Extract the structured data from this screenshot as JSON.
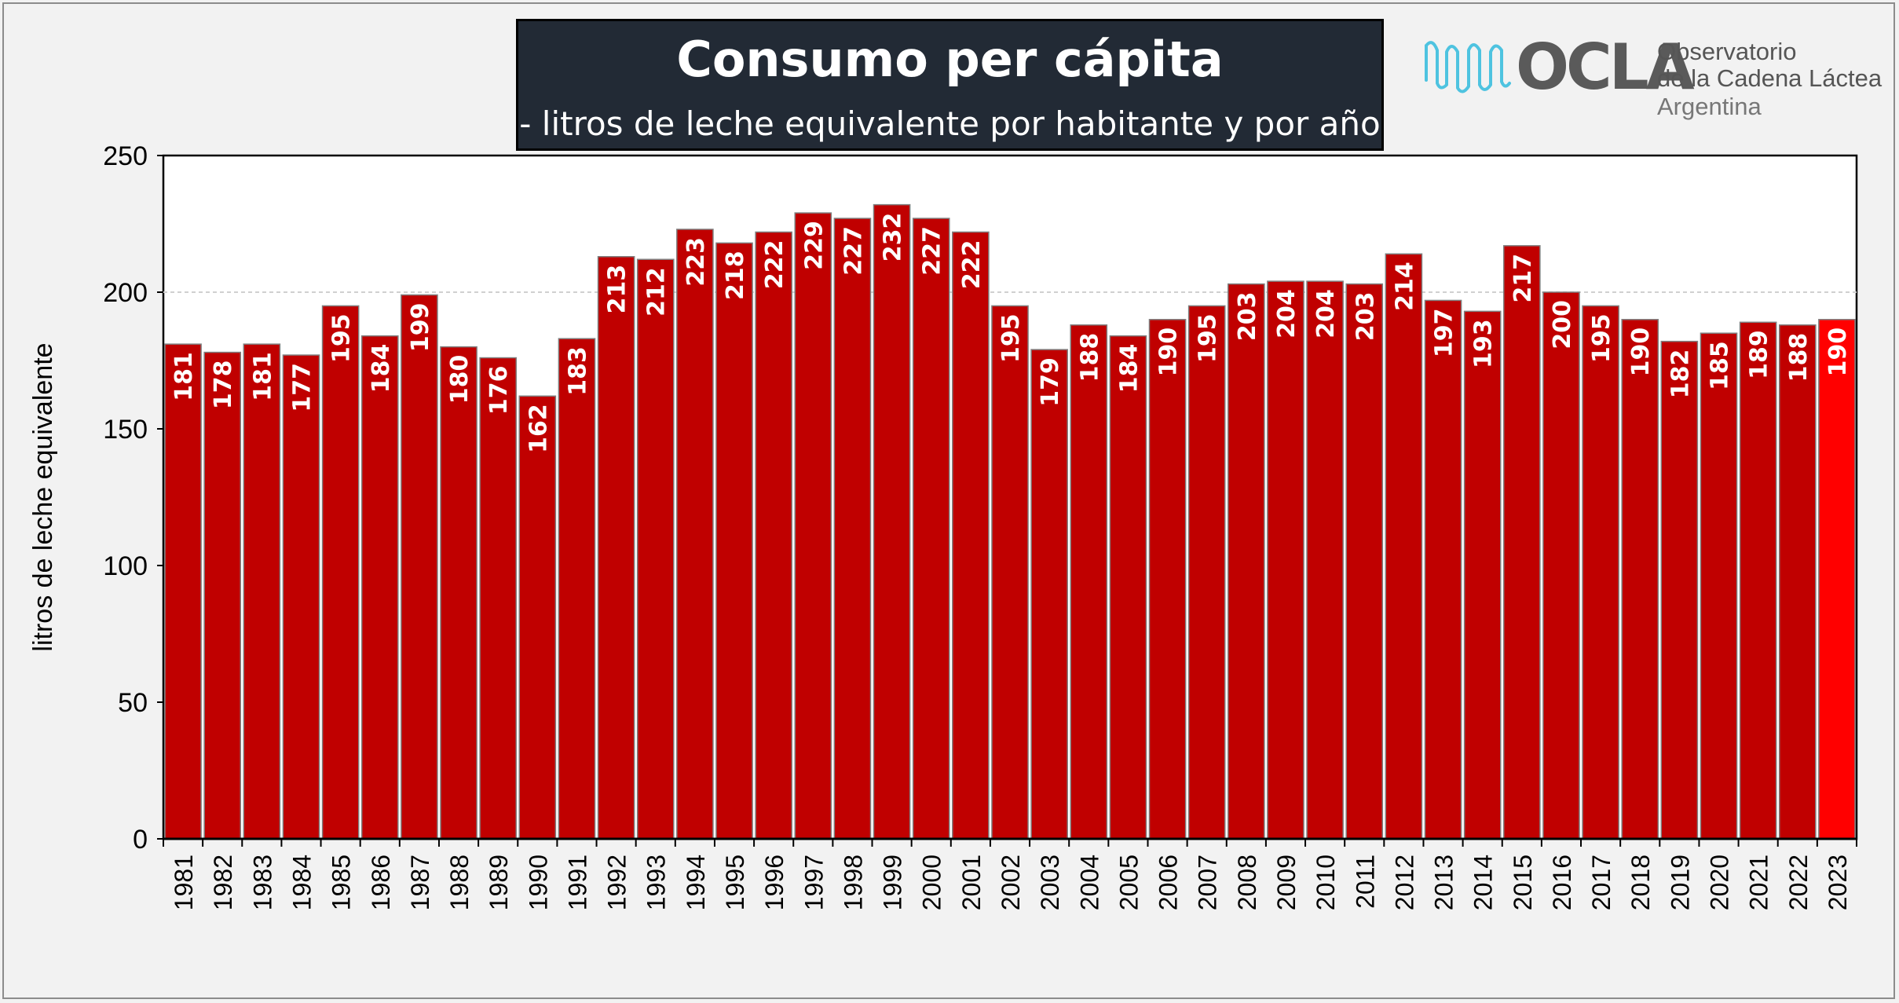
{
  "header": {
    "title": "Consumo per cápita",
    "subtitle": "- litros de leche equivalente por habitante y por año -"
  },
  "logo": {
    "name": "OCLA",
    "line1": "Observatorio",
    "line2": "de la Cadena Láctea",
    "line3": "Argentina",
    "wave_color": "#4ec3e0"
  },
  "chart_data": {
    "type": "bar",
    "title": "Consumo per cápita",
    "subtitle": "- litros de leche equivalente por habitante y por año -",
    "xlabel": "",
    "ylabel": "litros de leche equivalente",
    "ylim": [
      0,
      250
    ],
    "yticks": [
      0,
      50,
      100,
      150,
      200,
      250
    ],
    "grid": "horizontal dashed at 200",
    "legend": "none",
    "colors": {
      "bar": "#c00000",
      "highlight": "#ff0000",
      "label": "#ffffff"
    },
    "highlight_category": "2023",
    "categories": [
      "1981",
      "1982",
      "1983",
      "1984",
      "1985",
      "1986",
      "1987",
      "1988",
      "1989",
      "1990",
      "1991",
      "1992",
      "1993",
      "1994",
      "1995",
      "1996",
      "1997",
      "1998",
      "1999",
      "2000",
      "2001",
      "2002",
      "2003",
      "2004",
      "2005",
      "2006",
      "2007",
      "2008",
      "2009",
      "2010",
      "2011",
      "2012",
      "2013",
      "2014",
      "2015",
      "2016",
      "2017",
      "2018",
      "2019",
      "2020",
      "2021",
      "2022",
      "2023"
    ],
    "values": [
      181,
      178,
      181,
      177,
      195,
      184,
      199,
      180,
      176,
      162,
      183,
      213,
      212,
      223,
      218,
      222,
      229,
      227,
      232,
      227,
      222,
      195,
      179,
      188,
      184,
      190,
      195,
      203,
      204,
      204,
      203,
      214,
      197,
      193,
      217,
      200,
      195,
      190,
      182,
      185,
      189,
      188,
      190
    ]
  }
}
